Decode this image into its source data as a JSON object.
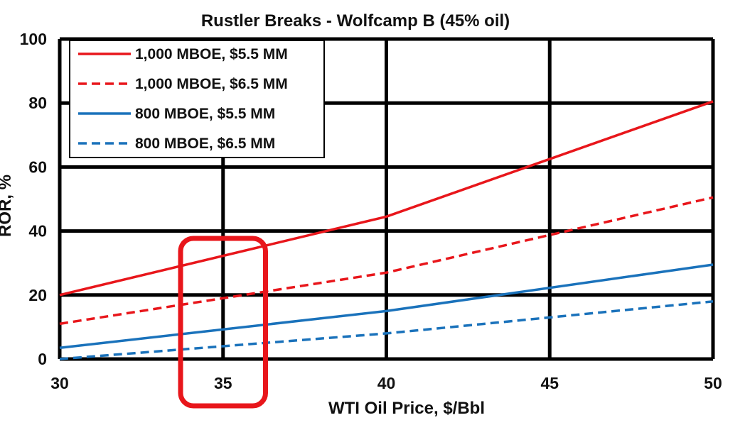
{
  "chart_data": {
    "type": "line",
    "title": "Rustler Breaks - Wolfcamp B (45% oil)",
    "xlabel": "WTI Oil Price, $/Bbl",
    "ylabel": "ROR, %",
    "xlim": [
      30,
      50
    ],
    "ylim": [
      0,
      100
    ],
    "xticks": [
      "30",
      "35",
      "40",
      "45",
      "50"
    ],
    "yticks": [
      "0",
      "20",
      "40",
      "60",
      "80",
      "100"
    ],
    "grid": true,
    "legend_position": "top-left",
    "x": [
      30,
      40,
      50
    ],
    "series": [
      {
        "name": "1,000 MBOE, $5.5 MM",
        "values": [
          20,
          44.5,
          80.5
        ],
        "color": "#e8161b",
        "dash": "solid"
      },
      {
        "name": "1,000 MBOE, $6.5 MM",
        "values": [
          11,
          27,
          50.5
        ],
        "color": "#e8161b",
        "dash": "dashed"
      },
      {
        "name": "800 MBOE, $5.5 MM",
        "values": [
          3.5,
          15,
          29.5
        ],
        "color": "#1a72bb",
        "dash": "solid"
      },
      {
        "name": "800 MBOE, $6.5 MM",
        "values": [
          0,
          8,
          18
        ],
        "color": "#1a72bb",
        "dash": "dashed"
      }
    ],
    "highlight": {
      "x_range": [
        33.7,
        36.3
      ],
      "color": "#e8161b"
    }
  }
}
